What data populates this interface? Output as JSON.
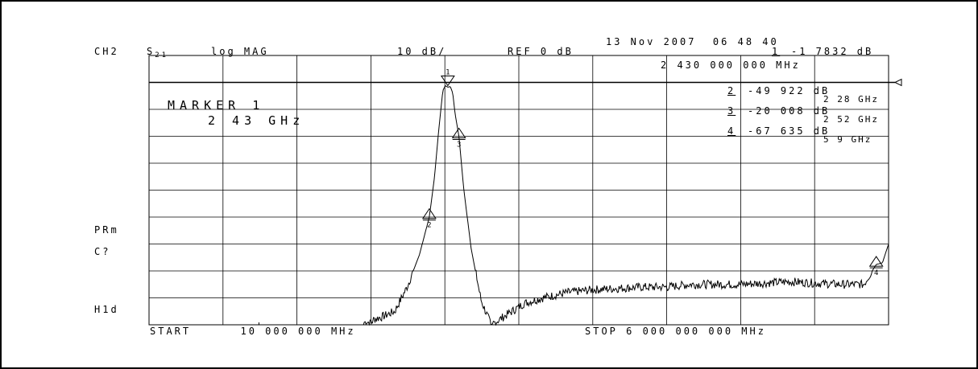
{
  "header": {
    "channel": "CH2",
    "param": "S",
    "param_sub": "21",
    "format": "log MAG",
    "scale": "10 dB/",
    "ref": "REF 0 dB",
    "datetime": "13 Nov 2007  06 48 40"
  },
  "active_marker": {
    "number": "1",
    "value": "-1 7832 dB",
    "stimulus": "2 430 000 000 MHz"
  },
  "marker_readout": {
    "title": "MARKER 1",
    "freq": "2 43 GHz"
  },
  "marker_list": [
    {
      "number": "2",
      "value": "-49 922 dB",
      "freq": "2 28 GHz"
    },
    {
      "number": "3",
      "value": "-20 008 dB",
      "freq": "2 52 GHz"
    },
    {
      "number": "4",
      "value": "-67 635 dB",
      "freq": "5 9 GHz"
    }
  ],
  "side_annotations": [
    "PRm",
    "C?",
    "H1d"
  ],
  "footer": {
    "start": "START      10 000 000 MHz",
    "stop": "STOP 6 000 000 000 MHz"
  },
  "chart_data": {
    "type": "line",
    "xlabel": "",
    "ylabel": "",
    "x_unit": "GHz",
    "y_unit": "dB",
    "xlim": [
      0.01,
      6.0
    ],
    "ylim": [
      -90,
      10
    ],
    "reference_level_db": 0,
    "grid": true,
    "series": [
      {
        "values_note_free": true,
        "x": [
          0.01,
          1.5,
          1.8,
          1.83,
          1.9,
          2.0,
          2.1,
          2.2,
          2.28,
          2.32,
          2.36,
          2.39,
          2.41,
          2.43,
          2.45,
          2.47,
          2.49,
          2.52,
          2.56,
          2.62,
          2.7,
          2.78,
          2.85,
          2.95,
          3.05,
          3.2,
          3.4,
          3.6,
          3.8,
          4.0,
          4.2,
          4.4,
          4.6,
          4.8,
          5.0,
          5.2,
          5.4,
          5.6,
          5.8,
          5.9,
          5.95,
          6.0
        ],
        "y": [
          -90,
          -90,
          -90,
          -88,
          -87,
          -85,
          -76,
          -64,
          -50,
          -36,
          -16,
          -3,
          -1.2,
          -1.8,
          -1.5,
          -4,
          -12,
          -20,
          -40,
          -62,
          -81,
          -90,
          -88,
          -85,
          -82,
          -80,
          -78,
          -77,
          -76.5,
          -76,
          -76,
          -75,
          -75,
          -75,
          -74.5,
          -74,
          -74.5,
          -75,
          -75,
          -67.6,
          -67,
          -60
        ]
      }
    ],
    "markers": [
      {
        "number": "1",
        "x": 2.43,
        "y": -1.7832
      },
      {
        "number": "2",
        "x": 2.28,
        "y": -49.922
      },
      {
        "number": "3",
        "x": 2.52,
        "y": -20.008
      },
      {
        "number": "4",
        "x": 5.9,
        "y": -67.635
      }
    ]
  }
}
